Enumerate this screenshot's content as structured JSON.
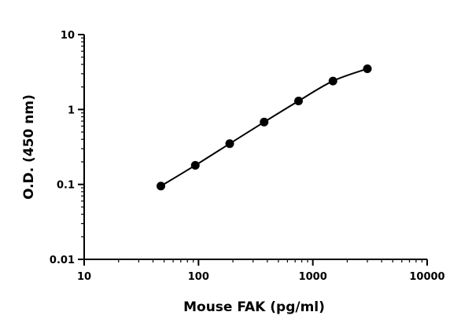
{
  "chart_data": {
    "type": "scatter",
    "title": "",
    "xlabel": "Mouse FAK (pg/ml)",
    "ylabel": "O.D. (450 nm)",
    "x_scale": "log",
    "y_scale": "log",
    "xlim": [
      10,
      10000
    ],
    "ylim": [
      0.01,
      10
    ],
    "x_ticks": [
      10,
      100,
      1000,
      10000
    ],
    "x_tick_labels": [
      "10",
      "100",
      "1000",
      "10000"
    ],
    "y_ticks": [
      0.01,
      0.1,
      1,
      10
    ],
    "y_tick_labels": [
      "0.01",
      "0.1",
      "1",
      "10"
    ],
    "grid": false,
    "legend": "none",
    "series": [
      {
        "x": [
          46.875,
          93.75,
          187.5,
          375,
          750,
          1500,
          3000
        ],
        "y": [
          0.095,
          0.18,
          0.35,
          0.68,
          1.3,
          2.4,
          3.5
        ],
        "marker": "circle",
        "fit_line": true,
        "color": "#000000"
      }
    ]
  }
}
